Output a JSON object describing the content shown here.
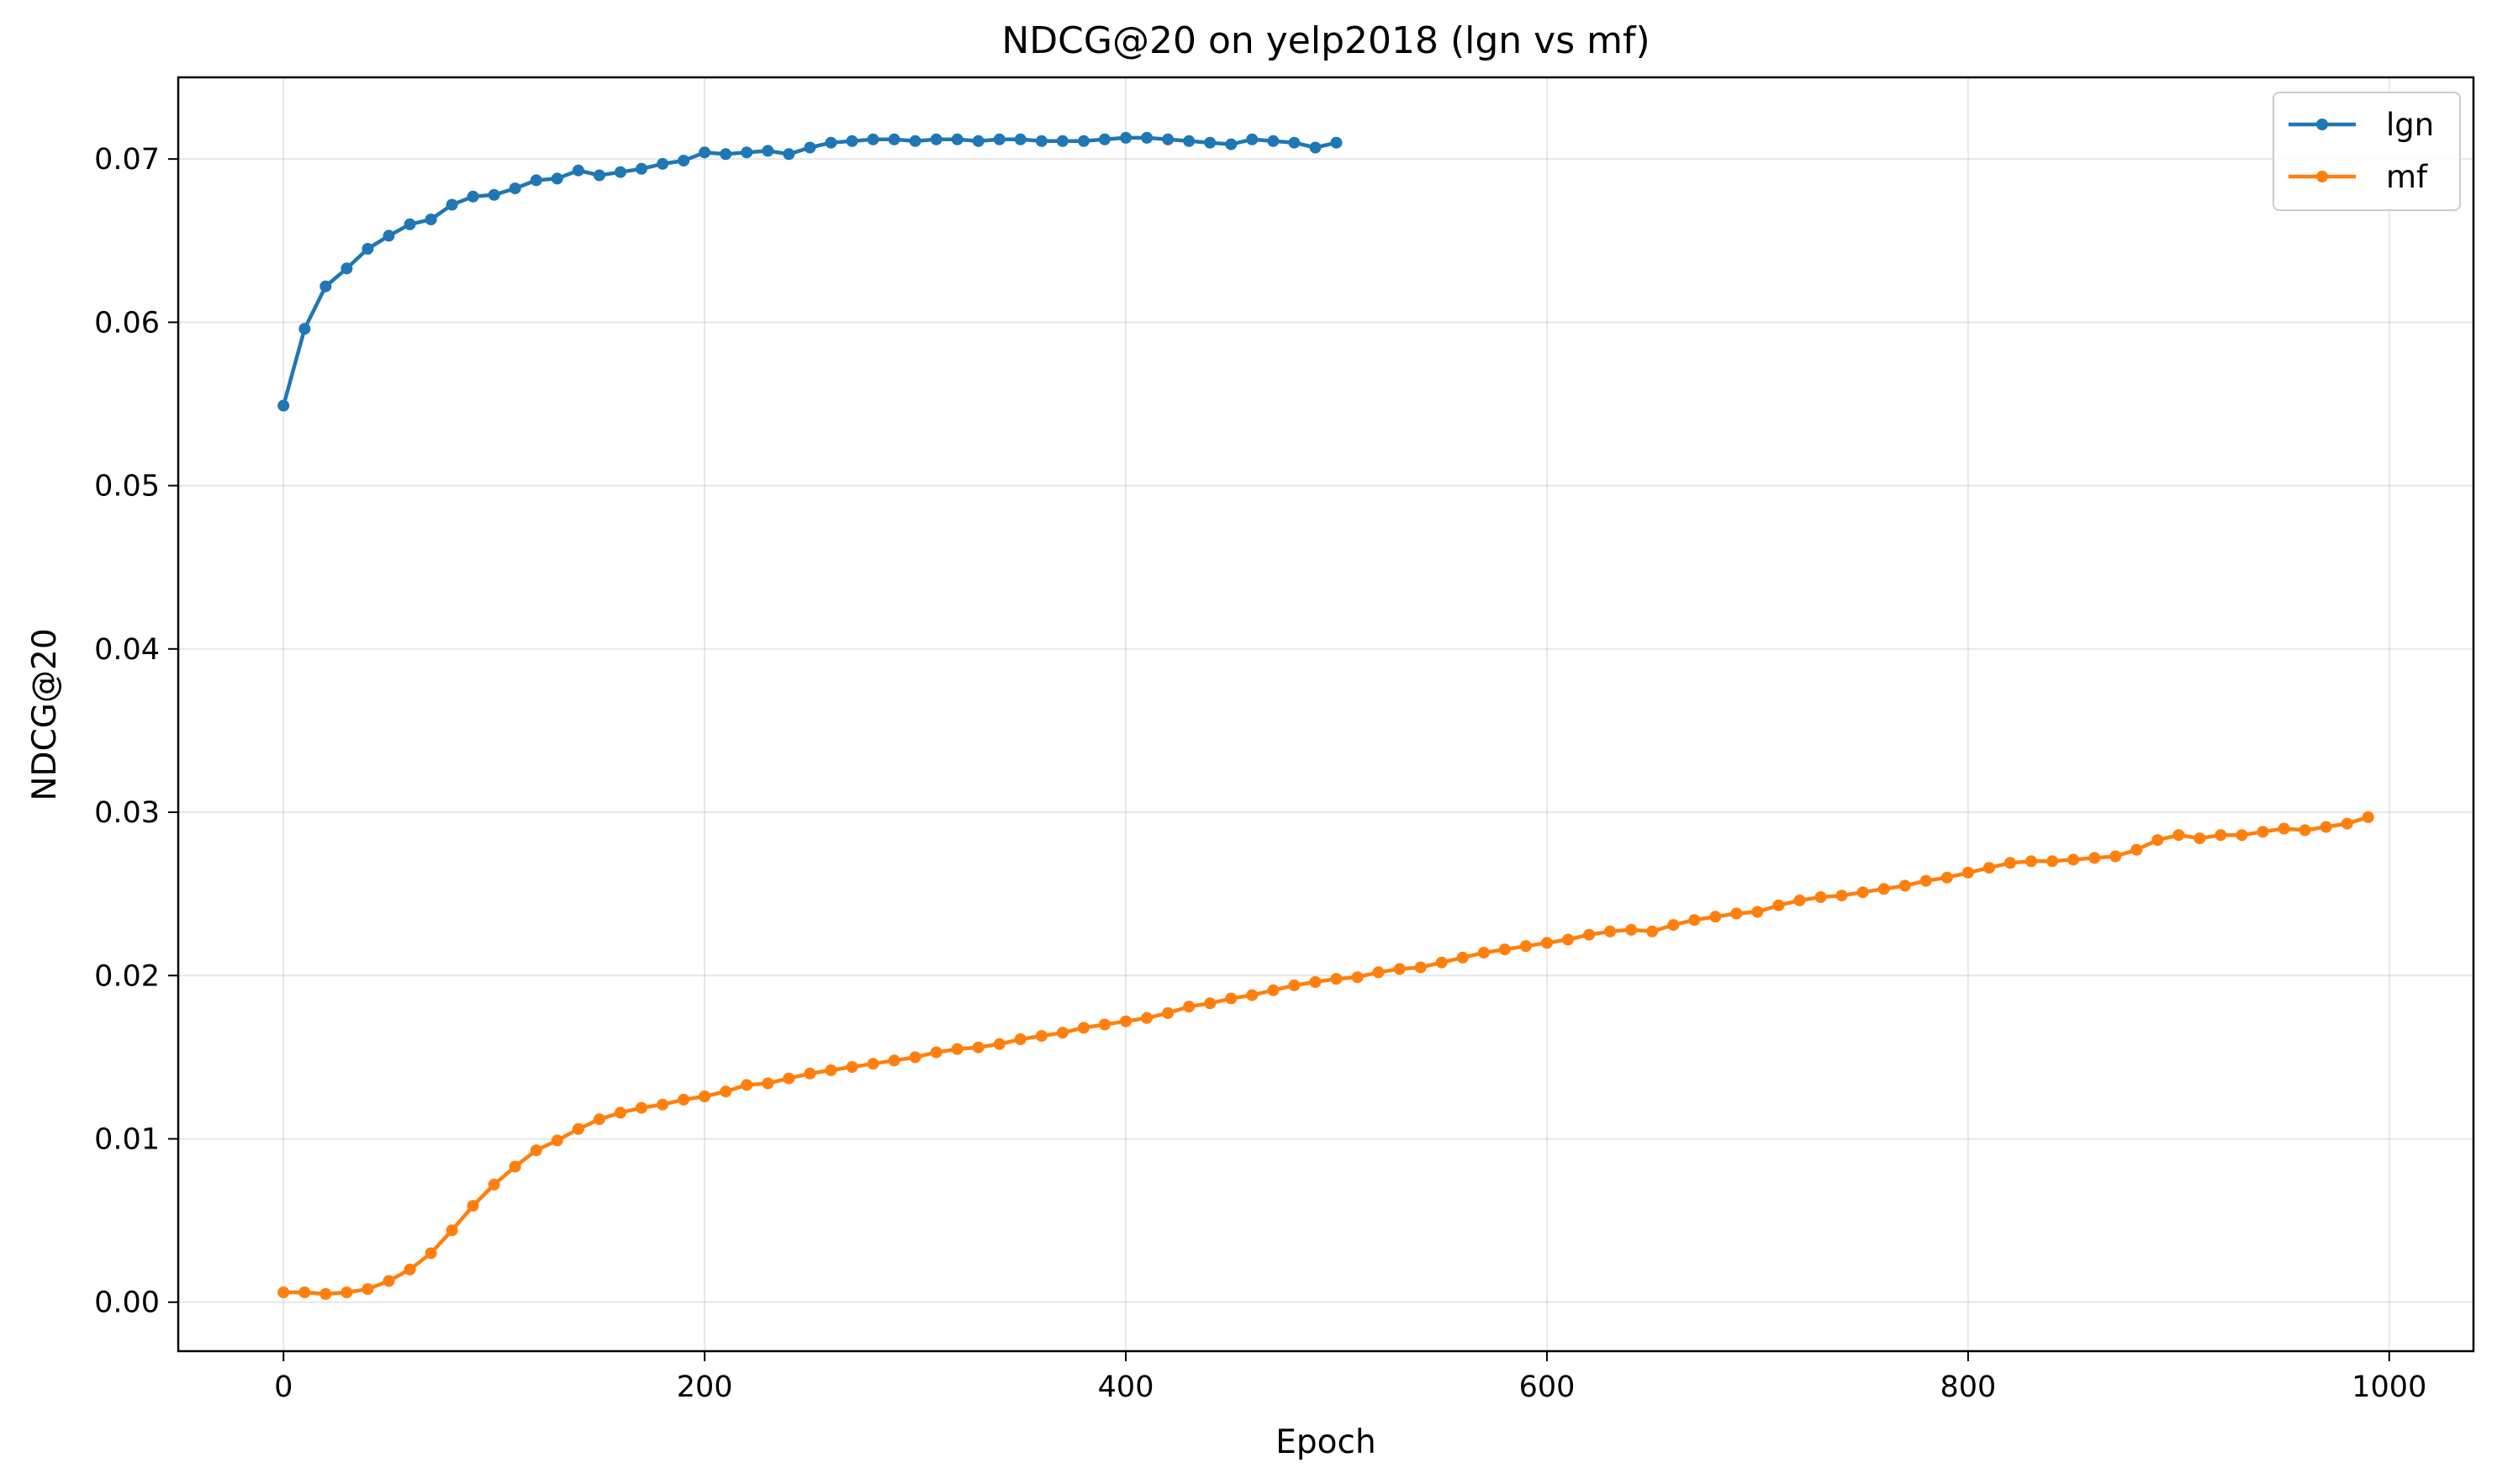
{
  "chart_data": {
    "type": "line",
    "title": "NDCG@20 on yelp2018 (lgn vs mf)",
    "xlabel": "Epoch",
    "ylabel": "NDCG@20",
    "xlim": [
      -50,
      1040
    ],
    "ylim": [
      -0.003,
      0.075
    ],
    "xticks": [
      0,
      200,
      400,
      600,
      800,
      1000
    ],
    "xtick_labels": [
      "0",
      "200",
      "400",
      "600",
      "800",
      "1000"
    ],
    "yticks": [
      0.0,
      0.01,
      0.02,
      0.03,
      0.04,
      0.05,
      0.06,
      0.07
    ],
    "ytick_labels": [
      "0.00",
      "0.01",
      "0.02",
      "0.03",
      "0.04",
      "0.05",
      "0.06",
      "0.07"
    ],
    "grid": true,
    "legend_position": "top-right",
    "series": [
      {
        "name": "lgn",
        "color": "#1f77b4",
        "marker": "circle",
        "x": [
          0,
          10,
          20,
          30,
          40,
          50,
          60,
          70,
          80,
          90,
          100,
          110,
          120,
          130,
          140,
          150,
          160,
          170,
          180,
          190,
          200,
          210,
          220,
          230,
          240,
          250,
          260,
          270,
          280,
          290,
          300,
          310,
          320,
          330,
          340,
          350,
          360,
          370,
          380,
          390,
          400,
          410,
          420,
          430,
          440,
          450,
          460,
          470,
          480,
          490,
          500
        ],
        "y": [
          0.0549,
          0.0596,
          0.0622,
          0.0633,
          0.0645,
          0.0653,
          0.066,
          0.0663,
          0.0672,
          0.0677,
          0.0678,
          0.0682,
          0.0687,
          0.0688,
          0.0693,
          0.069,
          0.0692,
          0.0694,
          0.0697,
          0.0699,
          0.0704,
          0.0703,
          0.0704,
          0.0705,
          0.0703,
          0.0707,
          0.071,
          0.0711,
          0.0712,
          0.0712,
          0.0711,
          0.0712,
          0.0712,
          0.0711,
          0.0712,
          0.0712,
          0.0711,
          0.0711,
          0.0711,
          0.0712,
          0.0713,
          0.0713,
          0.0712,
          0.0711,
          0.071,
          0.0709,
          0.0712,
          0.0711,
          0.071,
          0.0707,
          0.071
        ]
      },
      {
        "name": "mf",
        "color": "#ff7f0e",
        "marker": "circle",
        "x": [
          0,
          10,
          20,
          30,
          40,
          50,
          60,
          70,
          80,
          90,
          100,
          110,
          120,
          130,
          140,
          150,
          160,
          170,
          180,
          190,
          200,
          210,
          220,
          230,
          240,
          250,
          260,
          270,
          280,
          290,
          300,
          310,
          320,
          330,
          340,
          350,
          360,
          370,
          380,
          390,
          400,
          410,
          420,
          430,
          440,
          450,
          460,
          470,
          480,
          490,
          500,
          510,
          520,
          530,
          540,
          550,
          560,
          570,
          580,
          590,
          600,
          610,
          620,
          630,
          640,
          650,
          660,
          670,
          680,
          690,
          700,
          710,
          720,
          730,
          740,
          750,
          760,
          770,
          780,
          790,
          800,
          810,
          820,
          830,
          840,
          850,
          860,
          870,
          880,
          890,
          900,
          910,
          920,
          930,
          940,
          950,
          960,
          970,
          980,
          990
        ],
        "y": [
          0.0006,
          0.0006,
          0.0005,
          0.0006,
          0.0008,
          0.0013,
          0.002,
          0.003,
          0.0044,
          0.0059,
          0.0072,
          0.0083,
          0.0093,
          0.0099,
          0.0106,
          0.0112,
          0.0116,
          0.0119,
          0.0121,
          0.0124,
          0.0126,
          0.0129,
          0.0133,
          0.0134,
          0.0137,
          0.014,
          0.0142,
          0.0144,
          0.0146,
          0.0148,
          0.015,
          0.0153,
          0.0155,
          0.0156,
          0.0158,
          0.0161,
          0.0163,
          0.0165,
          0.0168,
          0.017,
          0.0172,
          0.0174,
          0.0177,
          0.0181,
          0.0183,
          0.0186,
          0.0188,
          0.0191,
          0.0194,
          0.0196,
          0.0198,
          0.0199,
          0.0202,
          0.0204,
          0.0205,
          0.0208,
          0.0211,
          0.0214,
          0.0216,
          0.0218,
          0.022,
          0.0222,
          0.0225,
          0.0227,
          0.0228,
          0.0227,
          0.0231,
          0.0234,
          0.0236,
          0.0238,
          0.0239,
          0.0243,
          0.0246,
          0.0248,
          0.0249,
          0.0251,
          0.0253,
          0.0255,
          0.0258,
          0.026,
          0.0263,
          0.0266,
          0.0269,
          0.027,
          0.027,
          0.0271,
          0.0272,
          0.0273,
          0.0277,
          0.0283,
          0.0286,
          0.0284,
          0.0286,
          0.0286,
          0.0288,
          0.029,
          0.0289,
          0.0291,
          0.0293,
          0.0297
        ]
      }
    ]
  }
}
